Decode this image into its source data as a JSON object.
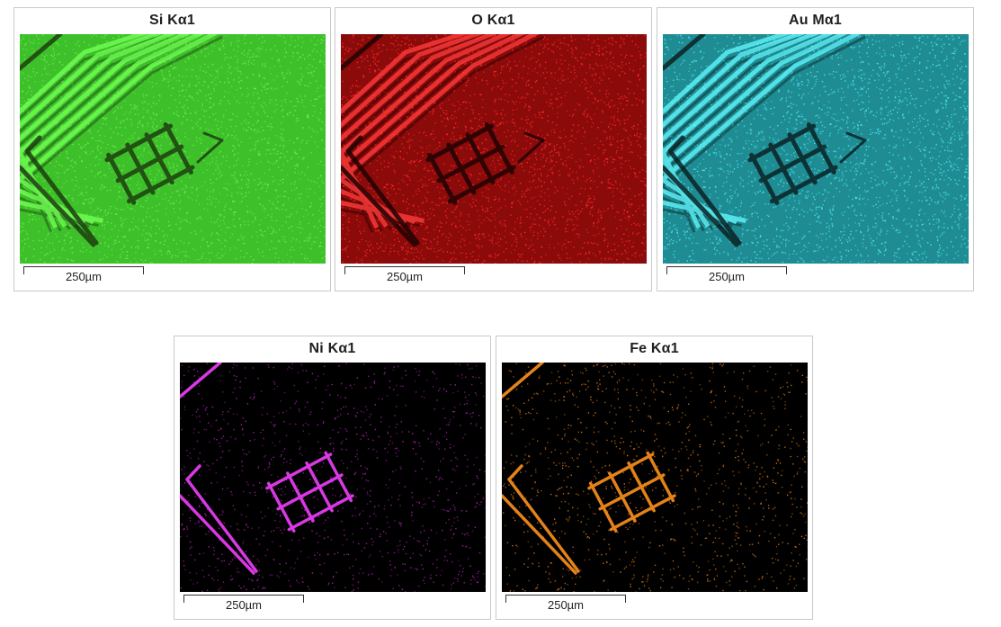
{
  "panels": [
    {
      "title": "Si Kα1",
      "scale_label": "250µm",
      "map_style": "bright",
      "background_color": "#3ec02a",
      "dot_color": "#6cf050",
      "feature_color": "#1c3e10",
      "stripe_color": "#72ff55"
    },
    {
      "title": "O Kα1",
      "scale_label": "250µm",
      "map_style": "bright",
      "background_color": "#8b0a0a",
      "dot_color": "#ff2a2a",
      "feature_color": "#200202",
      "stripe_color": "#ff3b3b"
    },
    {
      "title": "Au Mα1",
      "scale_label": "250µm",
      "map_style": "bright",
      "background_color": "#1f8c93",
      "dot_color": "#4ae6ec",
      "feature_color": "#0a2224",
      "stripe_color": "#5ff5fb"
    },
    {
      "title": "Ni Kα1",
      "scale_label": "250µm",
      "map_style": "dark",
      "background_color": "#000000",
      "dot_color": "#a020a8",
      "feature_color": "#e43cf0",
      "stripe_color": "#e43cf0"
    },
    {
      "title": "Fe Kα1",
      "scale_label": "250µm",
      "map_style": "dark",
      "background_color": "#000000",
      "dot_color": "#d07010",
      "feature_color": "#f08a1a",
      "stripe_color": "#f08a1a"
    }
  ]
}
